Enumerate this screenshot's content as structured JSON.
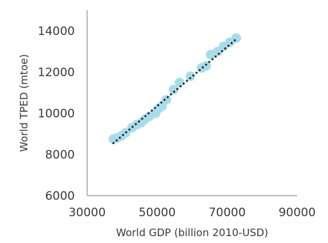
{
  "chart_data": {
    "type": "scatter",
    "title": "",
    "xlabel": "World GDP (billion 2010-USD)",
    "ylabel": "World TPED (mtoe)",
    "xlim": [
      30000,
      90000
    ],
    "ylim": [
      6000,
      14000
    ],
    "xticks": [
      "30000",
      "50000",
      "70000",
      "90000"
    ],
    "yticks": [
      "6000",
      "8000",
      "10000",
      "12000",
      "14000"
    ],
    "grid": false,
    "legend": "none",
    "point_color": "#a9dcea",
    "trendline_color": "#1c2b33",
    "series": [
      {
        "x": [
          37500,
          38500,
          39800,
          41000,
          42800,
          44200,
          45500,
          46500,
          47800,
          49500,
          50600,
          51400,
          52600,
          54700,
          56400,
          59500,
          62700,
          64000,
          65300,
          67300,
          69000,
          70800,
          72600
        ],
        "y": [
          8750,
          8800,
          8900,
          9050,
          9300,
          9450,
          9550,
          9700,
          9850,
          10000,
          10250,
          10350,
          10650,
          11150,
          11500,
          11800,
          12200,
          12300,
          12850,
          13000,
          13250,
          13450,
          13650
        ]
      }
    ],
    "trendline": {
      "x": [
        37500,
        72600
      ],
      "y": [
        8550,
        13600
      ]
    }
  }
}
